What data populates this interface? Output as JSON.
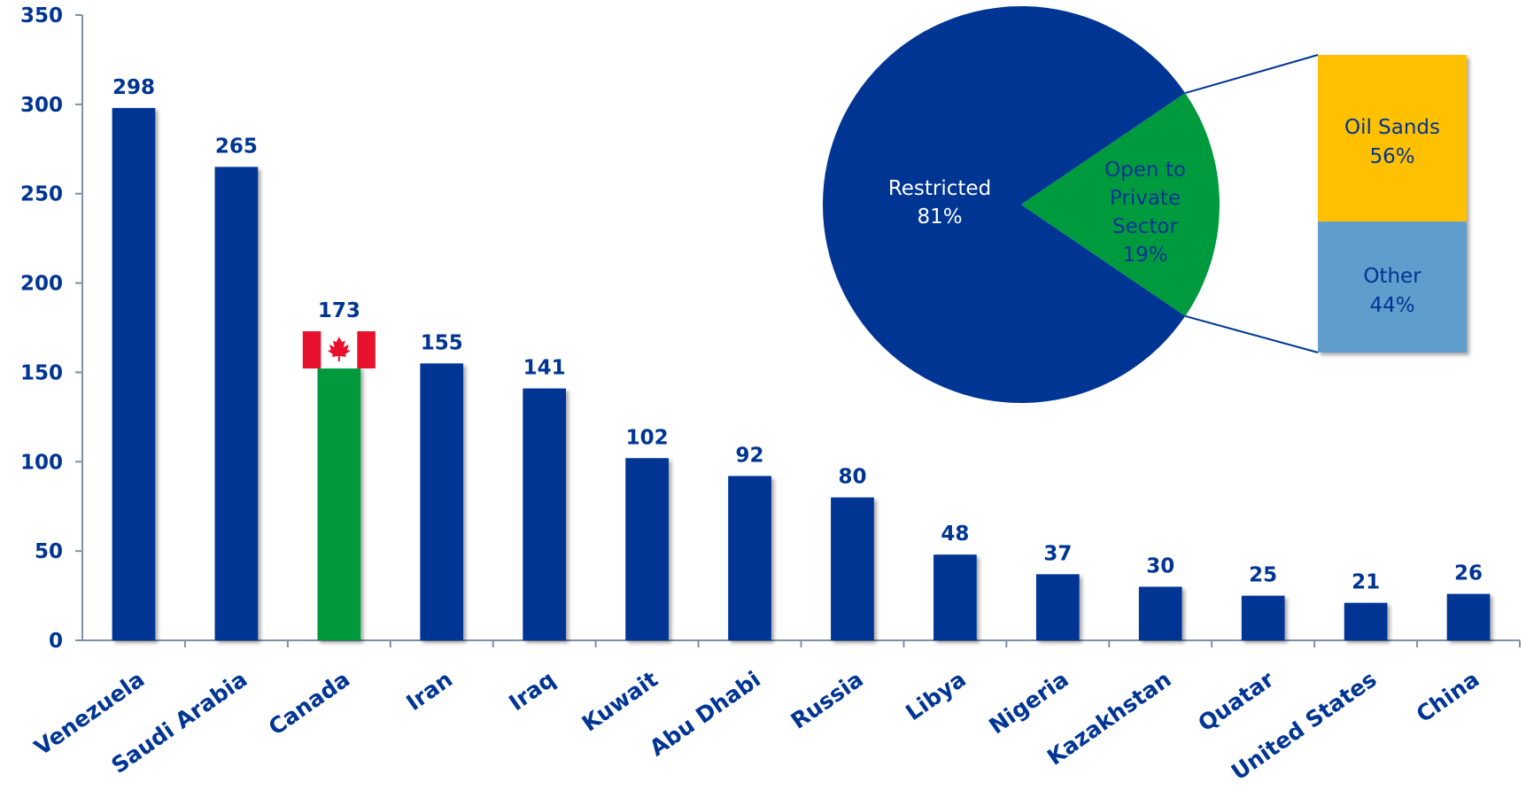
{
  "chart_data": [
    {
      "type": "bar",
      "categories": [
        "Venezuela",
        "Saudi Arabia",
        "Canada",
        "Iran",
        "Iraq",
        "Kuwait",
        "Abu Dhabi",
        "Russia",
        "Libya",
        "Nigeria",
        "Kazakhstan",
        "Quatar",
        "United States",
        "China"
      ],
      "values": [
        298,
        265,
        173,
        155,
        141,
        102,
        92,
        80,
        48,
        37,
        30,
        25,
        21,
        26
      ],
      "ylim": [
        0,
        350
      ],
      "yticks": [
        0,
        50,
        100,
        150,
        200,
        250,
        300,
        350
      ],
      "highlight": {
        "category": "Canada",
        "color": "#009a3e",
        "flag-icon": "canada-flag-icon"
      },
      "bar_color": "#003594",
      "grid": false,
      "legend": "none"
    },
    {
      "type": "pie",
      "slices": [
        {
          "label": "Restricted",
          "percent_label": "81%",
          "value": 81,
          "color": "#003594"
        },
        {
          "label": "Open to Private Sector",
          "label_lines": [
            "Open to",
            "Private",
            "Sector"
          ],
          "percent_label": "19%",
          "value": 19,
          "color": "#009a3e"
        }
      ]
    },
    {
      "type": "bar",
      "stacked": true,
      "breakdown_of": "Open to Private Sector",
      "segments": [
        {
          "label": "Oil Sands",
          "percent_label": "56%",
          "value": 56,
          "color": "#ffc000"
        },
        {
          "label": "Other",
          "percent_label": "44%",
          "value": 44,
          "color": "#5f9dcc"
        }
      ]
    }
  ]
}
